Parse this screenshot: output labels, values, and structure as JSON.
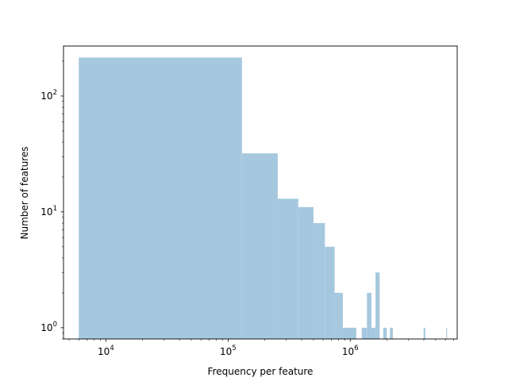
{
  "chart_data": {
    "type": "bar",
    "title": "",
    "xlabel": "Frequency per feature",
    "ylabel": "Number of features",
    "xscale": "log",
    "yscale": "log",
    "xlim": [
      4500,
      7500000
    ],
    "ylim": [
      0.8,
      270
    ],
    "grid": false,
    "legend": "none",
    "bar_color": "#a6c8df",
    "x_ticks": [
      {
        "value": 10000,
        "base": "10",
        "exp": "4"
      },
      {
        "value": 100000,
        "base": "10",
        "exp": "5"
      },
      {
        "value": 1000000,
        "base": "10",
        "exp": "6"
      }
    ],
    "y_ticks": [
      {
        "value": 1,
        "base": "10",
        "exp": "0"
      },
      {
        "value": 10,
        "base": "10",
        "exp": "1"
      },
      {
        "value": 100,
        "base": "10",
        "exp": "2"
      }
    ],
    "bins": [
      {
        "x0": 6000,
        "x1": 130000,
        "count": 215
      },
      {
        "x0": 130000,
        "x1": 255000,
        "count": 32
      },
      {
        "x0": 255000,
        "x1": 375000,
        "count": 13
      },
      {
        "x0": 375000,
        "x1": 500000,
        "count": 11
      },
      {
        "x0": 500000,
        "x1": 620000,
        "count": 8
      },
      {
        "x0": 620000,
        "x1": 745000,
        "count": 5
      },
      {
        "x0": 745000,
        "x1": 870000,
        "count": 2
      },
      {
        "x0": 870000,
        "x1": 1120000,
        "count": 1
      },
      {
        "x0": 1240000,
        "x1": 1370000,
        "count": 1
      },
      {
        "x0": 1370000,
        "x1": 1490000,
        "count": 2
      },
      {
        "x0": 1490000,
        "x1": 1610000,
        "count": 1
      },
      {
        "x0": 1610000,
        "x1": 1740000,
        "count": 3
      },
      {
        "x0": 1860000,
        "x1": 1990000,
        "count": 1
      },
      {
        "x0": 2110000,
        "x1": 2230000,
        "count": 1
      },
      {
        "x0": 3980000,
        "x1": 4110000,
        "count": 1
      },
      {
        "x0": 6100000,
        "x1": 6200000,
        "count": 1
      }
    ]
  }
}
